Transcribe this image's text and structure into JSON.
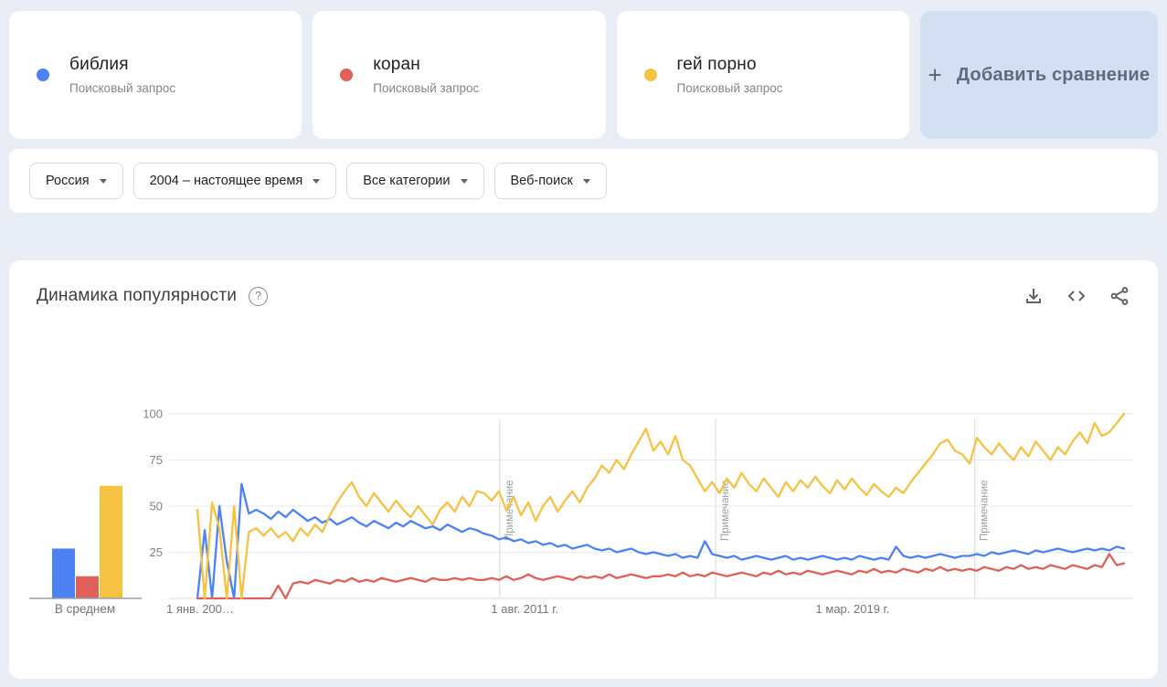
{
  "terms": {
    "cards": [
      {
        "keyword": "библия",
        "type": "Поисковый запрос",
        "color": "#4d82f3"
      },
      {
        "keyword": "коран",
        "type": "Поисковый запрос",
        "color": "#e0615a"
      },
      {
        "keyword": "гей порно",
        "type": "Поисковый запрос",
        "color": "#f5c242"
      }
    ],
    "add_comparison_label": "Добавить сравнение",
    "add_plus": "+"
  },
  "filters": {
    "geo": "Россия",
    "time": "2004 – настоящее время",
    "category": "Все категории",
    "search_type": "Веб-поиск"
  },
  "chart_header": {
    "title": "Динамика популярности",
    "help_icon": "?"
  },
  "chart_data": {
    "type": "line",
    "title": "Динамика популярности",
    "ylim": [
      0,
      100
    ],
    "y_ticks": [
      25,
      50,
      75,
      100
    ],
    "grid": true,
    "x_range_years": [
      2004.0,
      2025.5
    ],
    "x_tick_labels": [
      {
        "label": "1 янв. 200…",
        "year": 2004.0,
        "anchor": "start"
      },
      {
        "label": "1 авг. 2011 г.",
        "year": 2011.58,
        "anchor": "middle"
      },
      {
        "label": "1 мар. 2019 г.",
        "year": 2019.17,
        "anchor": "middle"
      }
    ],
    "annotations": [
      {
        "label": "Примечание",
        "year": 2011.0
      },
      {
        "label": "Примечание",
        "year": 2016.0
      },
      {
        "label": "Примечание",
        "year": 2022.0
      }
    ],
    "avg_label": "В среднем",
    "series": [
      {
        "name": "библия",
        "color": "#4d82f3",
        "average": 27,
        "values": [
          0,
          37,
          0,
          50,
          20,
          0,
          62,
          46,
          48,
          46,
          43,
          47,
          44,
          48,
          45,
          42,
          44,
          41,
          43,
          40,
          42,
          44,
          41,
          39,
          42,
          40,
          38,
          41,
          39,
          42,
          40,
          38,
          39,
          37,
          40,
          38,
          36,
          38,
          37,
          35,
          34,
          32,
          33,
          31,
          32,
          30,
          31,
          29,
          30,
          28,
          29,
          27,
          28,
          29,
          27,
          26,
          27,
          25,
          26,
          27,
          25,
          24,
          25,
          24,
          23,
          24,
          22,
          23,
          22,
          31,
          24,
          23,
          22,
          23,
          21,
          22,
          23,
          22,
          21,
          22,
          23,
          21,
          22,
          21,
          22,
          23,
          22,
          21,
          22,
          21,
          23,
          22,
          21,
          22,
          21,
          28,
          23,
          22,
          23,
          22,
          23,
          24,
          23,
          22,
          23,
          23,
          24,
          23,
          25,
          24,
          25,
          26,
          25,
          24,
          26,
          25,
          26,
          27,
          26,
          25,
          26,
          27,
          26,
          27,
          26,
          28,
          27
        ]
      },
      {
        "name": "коран",
        "color": "#e0615a",
        "average": 12,
        "values": [
          0,
          0,
          0,
          0,
          0,
          0,
          0,
          0,
          0,
          0,
          0,
          7,
          0,
          8,
          9,
          8,
          10,
          9,
          8,
          10,
          9,
          11,
          9,
          10,
          9,
          11,
          10,
          9,
          10,
          11,
          10,
          9,
          11,
          10,
          10,
          11,
          10,
          11,
          10,
          10,
          11,
          10,
          12,
          10,
          11,
          13,
          11,
          10,
          11,
          12,
          11,
          10,
          12,
          11,
          12,
          11,
          13,
          11,
          12,
          13,
          12,
          11,
          12,
          12,
          13,
          12,
          14,
          12,
          13,
          12,
          14,
          13,
          12,
          13,
          14,
          13,
          12,
          14,
          13,
          15,
          13,
          14,
          13,
          15,
          14,
          13,
          14,
          15,
          14,
          13,
          15,
          14,
          16,
          14,
          15,
          14,
          16,
          15,
          14,
          16,
          15,
          17,
          15,
          16,
          15,
          16,
          15,
          17,
          16,
          15,
          17,
          16,
          18,
          16,
          17,
          16,
          18,
          17,
          16,
          18,
          17,
          16,
          18,
          17,
          24,
          18,
          19
        ]
      },
      {
        "name": "гей порно",
        "color": "#f5c242",
        "average": 61,
        "values": [
          48,
          0,
          52,
          38,
          0,
          50,
          0,
          36,
          38,
          34,
          38,
          33,
          36,
          31,
          38,
          34,
          40,
          36,
          45,
          52,
          58,
          63,
          55,
          50,
          57,
          52,
          47,
          53,
          48,
          44,
          50,
          45,
          40,
          48,
          52,
          47,
          55,
          50,
          58,
          57,
          53,
          58,
          48,
          55,
          45,
          52,
          42,
          50,
          55,
          47,
          53,
          58,
          52,
          60,
          65,
          72,
          68,
          75,
          70,
          78,
          85,
          92,
          80,
          85,
          78,
          88,
          75,
          72,
          65,
          58,
          63,
          57,
          65,
          60,
          68,
          62,
          58,
          65,
          60,
          55,
          63,
          58,
          64,
          60,
          66,
          61,
          57,
          64,
          59,
          65,
          60,
          56,
          62,
          58,
          55,
          60,
          57,
          63,
          68,
          73,
          78,
          84,
          86,
          80,
          78,
          73,
          87,
          82,
          78,
          84,
          79,
          75,
          82,
          77,
          85,
          80,
          75,
          82,
          78,
          85,
          90,
          84,
          95,
          88,
          90,
          95,
          100
        ]
      }
    ]
  }
}
